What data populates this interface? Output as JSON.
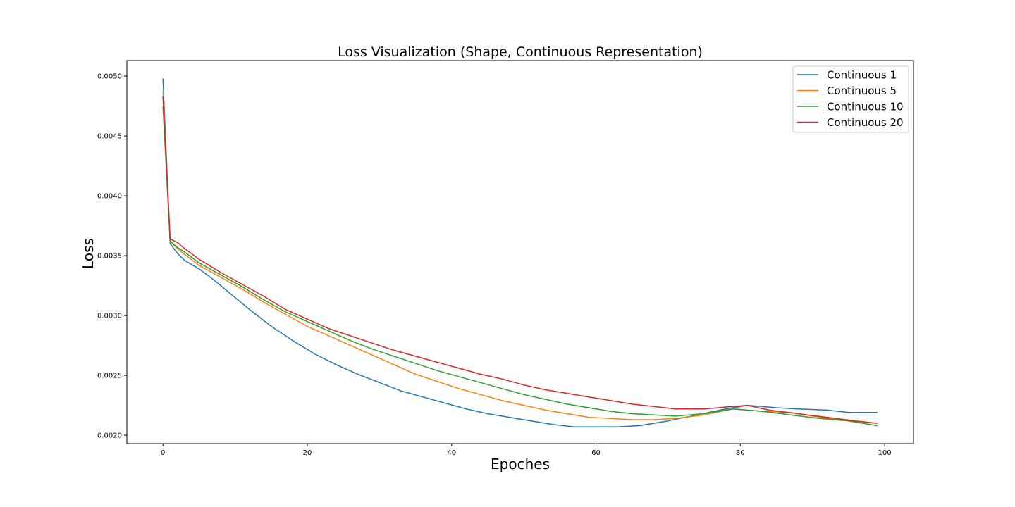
{
  "chart_data": {
    "type": "line",
    "title": "Loss Visualization (Shape, Continuous Representation)",
    "xlabel": "Epoches",
    "ylabel": "Loss",
    "xlim": [
      -5,
      104
    ],
    "ylim": [
      0.00193,
      0.00513
    ],
    "xticks": [
      0,
      20,
      40,
      60,
      80,
      100
    ],
    "yticks": [
      0.002,
      0.0025,
      0.003,
      0.0035,
      0.004,
      0.0045,
      0.005
    ],
    "xtick_labels": [
      "0",
      "20",
      "40",
      "60",
      "80",
      "100"
    ],
    "ytick_labels": [
      "0.0020",
      "0.0025",
      "0.0030",
      "0.0035",
      "0.0040",
      "0.0045",
      "0.0050"
    ],
    "grid": false,
    "legend_position": "top-right",
    "series": [
      {
        "name": "Continuous 1",
        "color": "#1f77b4",
        "x": [
          0,
          1,
          2,
          3,
          5,
          7,
          9,
          12,
          15,
          18,
          21,
          24,
          27,
          30,
          33,
          36,
          39,
          42,
          45,
          48,
          51,
          54,
          57,
          60,
          63,
          66,
          70,
          74,
          78,
          81,
          85,
          88,
          92,
          95,
          99
        ],
        "y": [
          0.00498,
          0.0036,
          0.00352,
          0.00346,
          0.00339,
          0.0033,
          0.0032,
          0.00305,
          0.00291,
          0.00279,
          0.00268,
          0.00259,
          0.00251,
          0.00244,
          0.00237,
          0.00232,
          0.00227,
          0.00222,
          0.00218,
          0.00215,
          0.00212,
          0.00209,
          0.00207,
          0.00207,
          0.00207,
          0.00208,
          0.00212,
          0.00217,
          0.00222,
          0.00225,
          0.00223,
          0.00222,
          0.00221,
          0.00219,
          0.00219
        ]
      },
      {
        "name": "Continuous 5",
        "color": "#ff7f0e",
        "x": [
          0,
          1,
          2,
          3,
          5,
          8,
          11,
          14,
          17,
          20,
          23,
          26,
          29,
          32,
          35,
          38,
          41,
          44,
          47,
          50,
          53,
          56,
          59,
          62,
          65,
          68,
          71,
          75,
          79,
          83,
          87,
          91,
          95,
          99
        ],
        "y": [
          0.00487,
          0.00362,
          0.00356,
          0.00351,
          0.00342,
          0.00332,
          0.00322,
          0.00311,
          0.00301,
          0.00291,
          0.00283,
          0.00275,
          0.00267,
          0.00259,
          0.00251,
          0.00245,
          0.00239,
          0.00234,
          0.00229,
          0.00225,
          0.00221,
          0.00218,
          0.00215,
          0.00214,
          0.00213,
          0.00213,
          0.00214,
          0.00217,
          0.00222,
          0.0022,
          0.00219,
          0.00215,
          0.00212,
          0.0021
        ]
      },
      {
        "name": "Continuous 10",
        "color": "#2ca02c",
        "x": [
          0,
          1,
          2,
          3,
          5,
          8,
          11,
          14,
          17,
          20,
          23,
          26,
          29,
          32,
          35,
          38,
          41,
          44,
          47,
          50,
          53,
          56,
          59,
          62,
          65,
          68,
          71,
          75,
          79,
          83,
          87,
          91,
          95,
          99
        ],
        "y": [
          0.00475,
          0.00362,
          0.00357,
          0.00353,
          0.00344,
          0.00334,
          0.00324,
          0.00313,
          0.00303,
          0.00295,
          0.00287,
          0.00279,
          0.00272,
          0.00266,
          0.0026,
          0.00254,
          0.00249,
          0.00244,
          0.00239,
          0.00234,
          0.0023,
          0.00226,
          0.00223,
          0.0022,
          0.00218,
          0.00217,
          0.00216,
          0.00218,
          0.00222,
          0.0022,
          0.00217,
          0.00214,
          0.00212,
          0.00208
        ]
      },
      {
        "name": "Continuous 20",
        "color": "#d62728",
        "x": [
          0,
          1,
          2,
          3,
          5,
          8,
          11,
          14,
          17,
          20,
          23,
          26,
          29,
          32,
          35,
          38,
          41,
          44,
          47,
          50,
          53,
          56,
          59,
          62,
          65,
          68,
          71,
          75,
          79,
          81,
          84,
          88,
          92,
          96,
          99
        ],
        "y": [
          0.00483,
          0.00364,
          0.00361,
          0.00356,
          0.00347,
          0.00336,
          0.00326,
          0.00316,
          0.00305,
          0.00297,
          0.00289,
          0.00283,
          0.00277,
          0.00271,
          0.00266,
          0.00261,
          0.00256,
          0.00251,
          0.00247,
          0.00242,
          0.00238,
          0.00235,
          0.00232,
          0.00229,
          0.00226,
          0.00224,
          0.00222,
          0.00222,
          0.00224,
          0.00225,
          0.00221,
          0.00218,
          0.00215,
          0.00212,
          0.0021
        ]
      }
    ]
  }
}
